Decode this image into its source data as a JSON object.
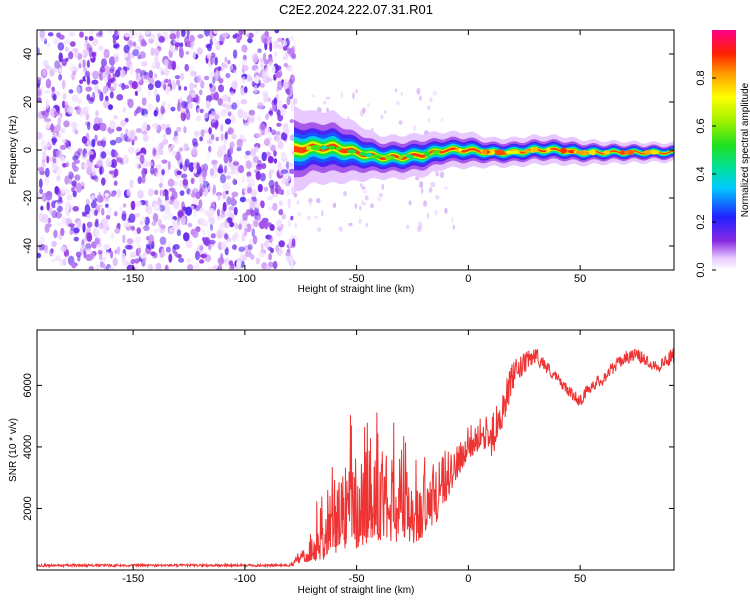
{
  "figure": {
    "title": "C2E2.2024.222.07.31.R01"
  },
  "colorbar": {
    "label": "Normalized spectral amplitude",
    "ticks": [
      {
        "value": 0.0,
        "label": "0.0"
      },
      {
        "value": 0.2,
        "label": "0.2"
      },
      {
        "value": 0.4,
        "label": "0.4"
      },
      {
        "value": 0.6,
        "label": "0.6"
      },
      {
        "value": 0.8,
        "label": "0.8"
      }
    ],
    "range": [
      0,
      1
    ],
    "colormap": "rainbow (white-violet-blue-cyan-green-yellow-red-magenta)"
  },
  "chart_data": [
    {
      "type": "heatmap",
      "xlabel": "Height of straight line (km)",
      "ylabel": "Frequency (Hz)",
      "xlim": [
        -193,
        92
      ],
      "ylim": [
        -50,
        50
      ],
      "xticks": [
        {
          "value": -150,
          "label": "-150"
        },
        {
          "value": -100,
          "label": "-100"
        },
        {
          "value": -50,
          "label": "-50"
        },
        {
          "value": 0,
          "label": "0"
        },
        {
          "value": 50,
          "label": "50"
        }
      ],
      "yticks": [
        {
          "value": -40,
          "label": "-40"
        },
        {
          "value": -20,
          "label": "-20"
        },
        {
          "value": 0,
          "label": "0"
        },
        {
          "value": 20,
          "label": "20"
        },
        {
          "value": 40,
          "label": "40"
        }
      ],
      "noise_region_x": [
        -193,
        -78
      ],
      "signal_trace": {
        "x": [
          -78,
          -70,
          -60,
          -50,
          -40,
          -30,
          -20,
          -10,
          0,
          10,
          20,
          30,
          40,
          50,
          60,
          70,
          80,
          92
        ],
        "y": [
          0,
          1,
          1,
          -1,
          -3,
          -3,
          -2,
          0,
          0,
          -1,
          -1,
          0,
          0,
          -1,
          -1,
          -1,
          -1,
          -1
        ],
        "halfwidth": [
          6,
          5,
          5,
          4,
          3,
          3,
          3,
          2.5,
          2.5,
          2,
          2,
          2,
          2,
          1.8,
          1.6,
          1.5,
          1.4,
          1.3
        ]
      }
    },
    {
      "type": "line",
      "xlabel": "Height of straight line (km)",
      "ylabel": "SNR (10 * v/v)",
      "xlim": [
        -193,
        92
      ],
      "ylim": [
        0,
        7800
      ],
      "xticks": [
        {
          "value": -150,
          "label": "-150"
        },
        {
          "value": -100,
          "label": "-100"
        },
        {
          "value": -50,
          "label": "-50"
        },
        {
          "value": 0,
          "label": "0"
        },
        {
          "value": 50,
          "label": "50"
        }
      ],
      "yticks": [
        {
          "value": 2000,
          "label": "2000"
        },
        {
          "value": 4000,
          "label": "4000"
        },
        {
          "value": 6000,
          "label": "6000"
        }
      ],
      "color": "#ee3333",
      "envelope": {
        "x": [
          -193,
          -80,
          -75,
          -65,
          -60,
          -55,
          -50,
          -45,
          -40,
          -35,
          -30,
          -25,
          -20,
          -15,
          -10,
          -5,
          0,
          5,
          10,
          15,
          20,
          25,
          30,
          35,
          40,
          45,
          50,
          55,
          60,
          65,
          70,
          75,
          80,
          85,
          92
        ],
        "base": [
          150,
          150,
          300,
          700,
          1000,
          1300,
          1400,
          1500,
          1600,
          1500,
          1400,
          1300,
          1500,
          1800,
          2500,
          3200,
          3800,
          4000,
          4200,
          5200,
          6300,
          6700,
          7000,
          6600,
          6200,
          5800,
          5500,
          6000,
          6200,
          6600,
          6900,
          7000,
          6800,
          6600,
          7000
        ],
        "amplitude": [
          80,
          80,
          500,
          2500,
          3500,
          4500,
          4800,
          4500,
          4200,
          4000,
          3800,
          3300,
          3000,
          2500,
          1800,
          1400,
          1200,
          1100,
          1000,
          900,
          700,
          500,
          400,
          300,
          250,
          250,
          300,
          300,
          300,
          300,
          300,
          300,
          300,
          300,
          400
        ]
      }
    }
  ]
}
